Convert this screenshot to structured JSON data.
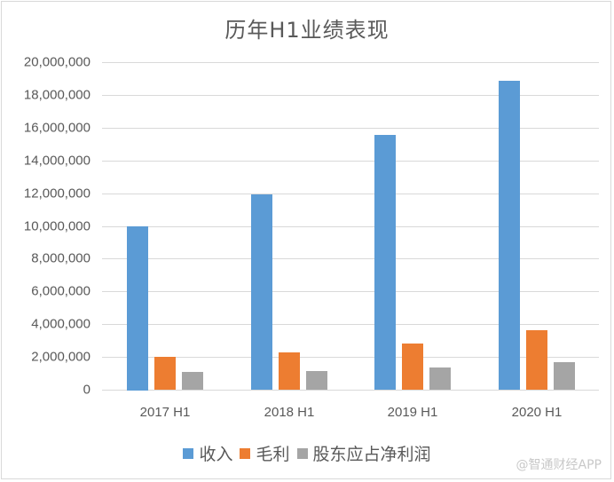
{
  "chart_data": {
    "type": "bar",
    "title": "历年H1业绩表现",
    "xlabel": "",
    "ylabel": "",
    "categories": [
      "2017 H1",
      "2018 H1",
      "2019 H1",
      "2020 H1"
    ],
    "series": [
      {
        "name": "收入",
        "color": "#5b9bd5",
        "values": [
          10000000,
          11950000,
          15550000,
          18860000
        ]
      },
      {
        "name": "毛利",
        "color": "#ed7d31",
        "values": [
          2000000,
          2280000,
          2820000,
          3630000
        ]
      },
      {
        "name": "股东应占净利润",
        "color": "#a5a5a5",
        "values": [
          1080000,
          1140000,
          1360000,
          1680000
        ]
      }
    ],
    "ylim": [
      0,
      20000000
    ],
    "yticks": [
      "0",
      "2,000,000",
      "4,000,000",
      "6,000,000",
      "8,000,000",
      "10,000,000",
      "12,000,000",
      "14,000,000",
      "16,000,000",
      "18,000,000",
      "20,000,000"
    ],
    "grid": true,
    "legend_position": "bottom"
  },
  "watermark": "@智通财经APP"
}
